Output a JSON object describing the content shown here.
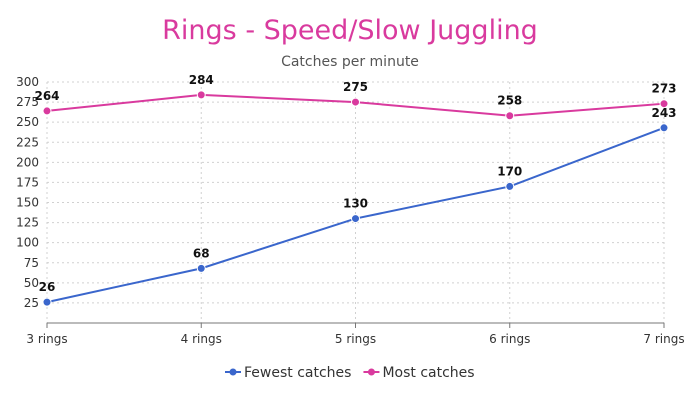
{
  "chart_data": {
    "type": "line",
    "title": "Rings - Speed/Slow Juggling",
    "subtitle": "Catches per minute",
    "categories": [
      "3 rings",
      "4 rings",
      "5 rings",
      "6 rings",
      "7 rings"
    ],
    "ylim": [
      0,
      300
    ],
    "yticks": [
      25,
      50,
      75,
      100,
      125,
      150,
      175,
      200,
      225,
      250,
      275,
      300
    ],
    "grid": true,
    "legend_position": "bottom",
    "series": [
      {
        "name": "Fewest catches",
        "values": [
          26,
          68,
          130,
          170,
          243
        ],
        "color": "#3a66cc"
      },
      {
        "name": "Most catches",
        "values": [
          264,
          284,
          275,
          258,
          273
        ],
        "color": "#d93a9e"
      }
    ],
    "title_color": "#d93a9e"
  }
}
